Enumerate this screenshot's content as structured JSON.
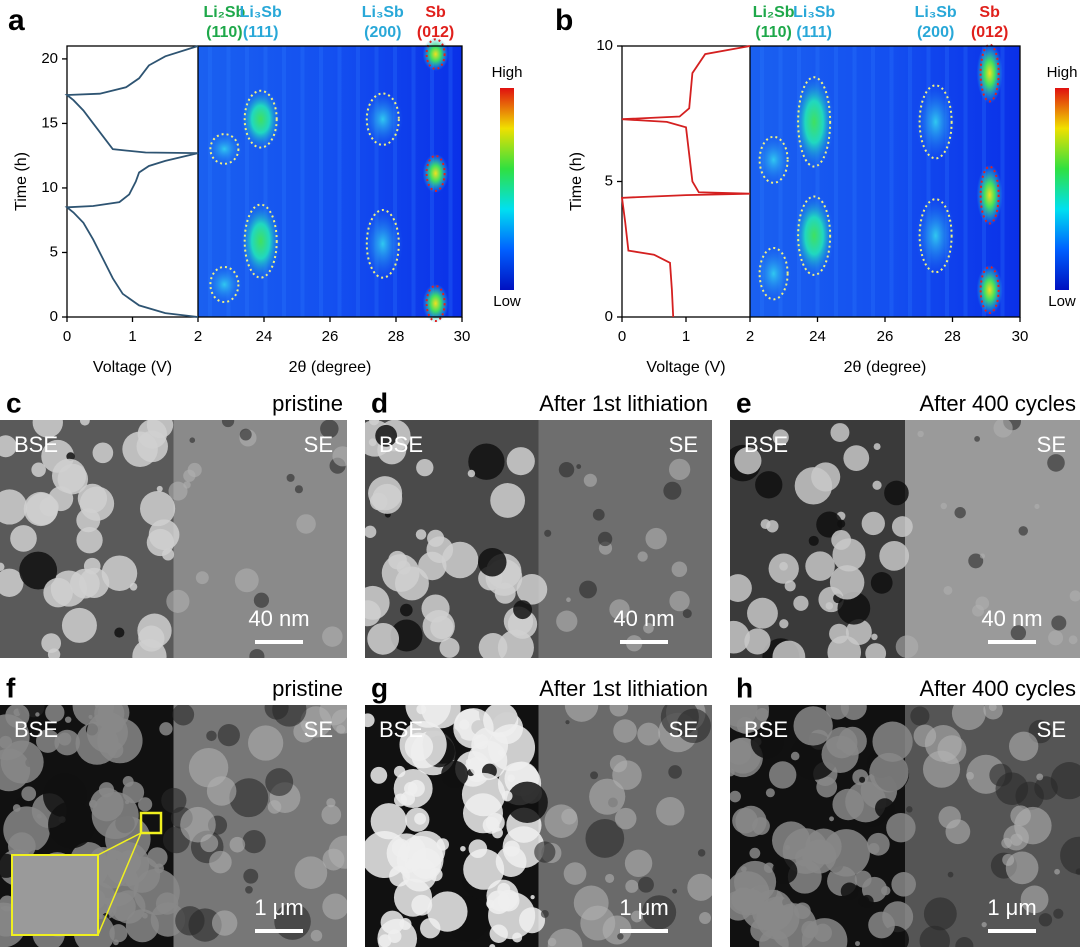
{
  "panels": [
    {
      "letter": "a",
      "voltage": {
        "type": "line",
        "x_label": "Voltage (V)",
        "y_label": "Time (h)",
        "xlim": [
          0,
          2
        ],
        "xticks": [
          0,
          1,
          2
        ],
        "ylim": [
          0,
          21
        ],
        "yticks": [
          0,
          5,
          10,
          15,
          20
        ],
        "color": "#2e5472",
        "x": [
          2,
          1.5,
          1.1,
          0.85,
          0.7,
          0.55,
          0.4,
          0.25,
          0.1,
          0,
          0.4,
          0.8,
          0.95,
          1.05,
          1.1,
          1.25,
          1.5,
          2,
          1.2,
          0.7,
          0.55,
          0.4,
          0.25,
          0.1,
          0,
          0.5,
          0.9,
          1.1,
          1.25,
          1.5,
          2
        ],
        "values": [
          0,
          0.3,
          0.9,
          1.8,
          3,
          4.5,
          6,
          7.3,
          8.1,
          8.5,
          8.6,
          8.9,
          9.5,
          10.5,
          11.2,
          11.7,
          12.1,
          12.7,
          12.75,
          13,
          14,
          15,
          16,
          16.8,
          17.2,
          17.3,
          17.8,
          18.5,
          19.5,
          20.2,
          21
        ]
      },
      "xrd": {
        "type": "heatmap",
        "x_label": "2θ (degree)",
        "xlim": [
          22,
          30
        ],
        "xticks": [
          24,
          26,
          28,
          30
        ],
        "colorbar": [
          "High",
          "Low"
        ],
        "peaks": [
          {
            "phase": "Li₂Sb",
            "hkl": "(110)",
            "color": "#1ea84a",
            "two_theta": 22.8
          },
          {
            "phase": "Li₃Sb",
            "hkl": "(111)",
            "color": "#29a8d8",
            "two_theta": 23.9
          },
          {
            "phase": "Li₃Sb",
            "hkl": "(200)",
            "color": "#29a8d8",
            "two_theta": 27.6
          },
          {
            "phase": "Sb",
            "hkl": "(012)",
            "color": "#e0201c",
            "two_theta": 29.2
          }
        ]
      }
    },
    {
      "letter": "b",
      "voltage": {
        "type": "line",
        "x_label": "Voltage (V)",
        "y_label": "Time (h)",
        "xlim": [
          0,
          2
        ],
        "xticks": [
          0,
          1,
          2
        ],
        "ylim": [
          0,
          10
        ],
        "yticks": [
          0,
          5,
          10
        ],
        "color": "#d42020",
        "x": [
          0.8,
          0.78,
          0.75,
          0.5,
          0.1,
          0.05,
          0,
          1,
          2,
          1.2,
          1.1,
          1.05,
          1,
          0.7,
          0,
          0.9,
          1.05,
          1.1,
          1.3,
          2
        ],
        "values": [
          0,
          1,
          2,
          2.3,
          2.45,
          3.5,
          4.4,
          4.5,
          4.55,
          4.6,
          5,
          6,
          7,
          7.2,
          7.3,
          7.4,
          7.7,
          9,
          9.7,
          10
        ]
      },
      "xrd": {
        "type": "heatmap",
        "x_label": "2θ (degree)",
        "xlim": [
          22,
          30
        ],
        "xticks": [
          24,
          26,
          28,
          30
        ],
        "colorbar": [
          "High",
          "Low"
        ],
        "peaks": [
          {
            "phase": "Li₂Sb",
            "hkl": "(110)",
            "color": "#1ea84a",
            "two_theta": 22.7
          },
          {
            "phase": "Li₃Sb",
            "hkl": "(111)",
            "color": "#29a8d8",
            "two_theta": 23.9
          },
          {
            "phase": "Li₃Sb",
            "hkl": "(200)",
            "color": "#29a8d8",
            "two_theta": 27.5
          },
          {
            "phase": "Sb",
            "hkl": "(012)",
            "color": "#e0201c",
            "two_theta": 29.1
          }
        ]
      }
    }
  ],
  "images": [
    {
      "letter": "c",
      "title": "pristine",
      "left": "BSE",
      "right": "SE",
      "scale": "40 nm"
    },
    {
      "letter": "d",
      "title": "After 1st lithiation",
      "left": "BSE",
      "right": "SE",
      "scale": "40 nm"
    },
    {
      "letter": "e",
      "title": "After 400 cycles",
      "left": "BSE",
      "right": "SE",
      "scale": "40 nm"
    },
    {
      "letter": "f",
      "title": "pristine",
      "left": "BSE",
      "right": "SE",
      "scale": "1 μm"
    },
    {
      "letter": "g",
      "title": "After 1st lithiation",
      "left": "BSE",
      "right": "SE",
      "scale": "1 μm"
    },
    {
      "letter": "h",
      "title": "After 400 cycles",
      "left": "BSE",
      "right": "SE",
      "scale": "1 μm"
    }
  ]
}
